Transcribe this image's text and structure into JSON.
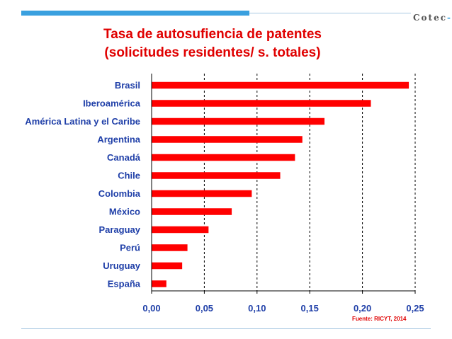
{
  "header": {
    "logo_text": "Cotec",
    "logo_mark": "-",
    "accent_color": "#3aa0df"
  },
  "title_line1": "Tasa de autosufiencia de patentes",
  "title_line2": "(solicitudes residentes/ s. totales)",
  "source": "Fuente:  RICYT, 2014",
  "chart_data": {
    "type": "bar",
    "orientation": "horizontal",
    "categories": [
      "Brasil",
      "Iberoamérica",
      "América Latina y el Caribe",
      "Argentina",
      "Canadá",
      "Chile",
      "Colombia",
      "México",
      "Paraguay",
      "Perú",
      "Uruguay",
      "España"
    ],
    "values": [
      0.244,
      0.208,
      0.164,
      0.143,
      0.136,
      0.122,
      0.095,
      0.076,
      0.054,
      0.034,
      0.029,
      0.014
    ],
    "xlim": [
      0,
      0.25
    ],
    "xticks": [
      "0,00",
      "0,05",
      "0,10",
      "0,15",
      "0,20",
      "0,25"
    ],
    "bar_color": "#ff0000",
    "grid": "vertical dashed"
  }
}
